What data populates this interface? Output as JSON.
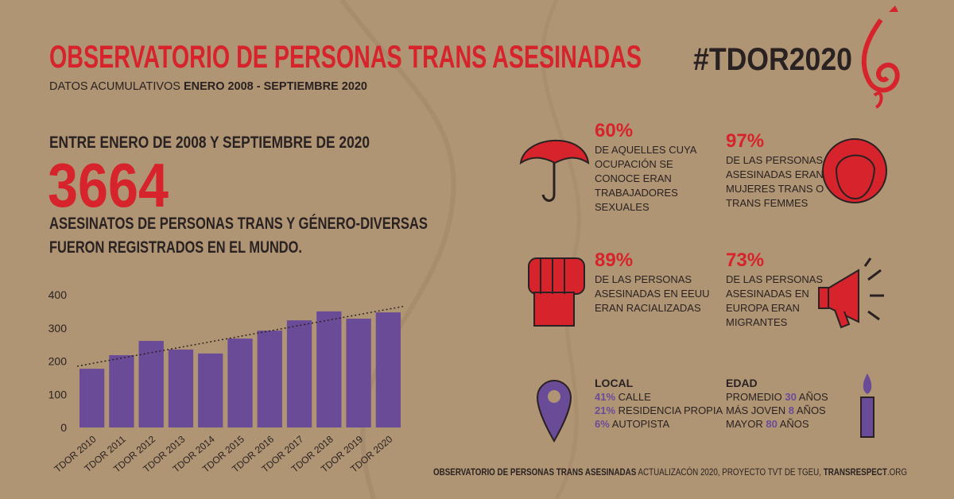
{
  "header": {
    "title": "OBSERVATORIO DE PERSONAS TRANS ASESINADAS",
    "subtitle_prefix": "DATOS ACUMULATIVOS",
    "subtitle_range": "ENERO 2008 - SEPTIEMBRE 2020",
    "hashtag": "#TDOR2020"
  },
  "summary": {
    "intro": "ENTRE ENERO DE 2008 Y SEPTIEMBRE DE 2020",
    "count": 3664,
    "lines": [
      "ASESINATOS DE PERSONAS TRANS Y GÉNERO-DIVERSAS",
      "FUERON REGISTRADOS EN EL MUNDO."
    ]
  },
  "stats": [
    {
      "value": "60%",
      "lines": [
        "DE AQUELLES CUYA",
        "OCUPACIÓN SE",
        "CONOCE ERAN",
        "TRABAJADORES",
        "SEXUALES"
      ]
    },
    {
      "value": "97%",
      "lines": [
        "DE LAS PERSONAS",
        "ASESINADAS ERAN",
        "MUJERES TRANS O",
        "TRANS FEMMES"
      ]
    },
    {
      "value": "89%",
      "lines": [
        "DE LAS PERSONAS",
        "ASESINADAS EN EEUU",
        "ERAN RACIALIZADAS"
      ]
    },
    {
      "value": "73%",
      "lines": [
        "DE LAS PERSONAS",
        "ASESINADAS EN",
        "EUROPA ERAN",
        "MIGRANTES"
      ]
    }
  ],
  "local": {
    "title": "LOCAL",
    "items": [
      {
        "pct": "41%",
        "label": "CALLE"
      },
      {
        "pct": "21%",
        "label": "RESIDENCIA PROPIA"
      },
      {
        "pct": "6%",
        "label": "AUTOPISTA"
      }
    ]
  },
  "edad": {
    "title": "EDAD",
    "items": [
      {
        "prefix": "PROMEDIO",
        "value": "30",
        "suffix": "AÑOS"
      },
      {
        "prefix": "MÁS JOVEN",
        "value": "8",
        "suffix": "AÑOS"
      },
      {
        "prefix": "MAYOR",
        "value": "80",
        "suffix": "AÑOS"
      }
    ]
  },
  "footer": {
    "source": "OBSERVATORIO DE PERSONAS TRANS ASESINADAS",
    "detail": "ACTUALIZACÓN 2020, PROYECTO TVT DE TGEU,",
    "site": "TRANSRESPECT",
    "tld": ".ORG"
  },
  "chart_data": {
    "type": "bar",
    "categories": [
      "TDOR 2010",
      "TDOR 2011",
      "TDOR 2012",
      "TDOR 2013",
      "TDOR 2014",
      "TDOR 2015",
      "TDOR 2016",
      "TDOR 2017",
      "TDOR 2018",
      "TDOR 2019",
      "TDOR 2020"
    ],
    "values": [
      177,
      218,
      261,
      235,
      223,
      268,
      292,
      323,
      350,
      328,
      347
    ],
    "color": "#6a4b98",
    "ylim": [
      0,
      400
    ],
    "yticks": [
      0,
      100,
      200,
      300,
      400
    ],
    "trendline": true
  }
}
